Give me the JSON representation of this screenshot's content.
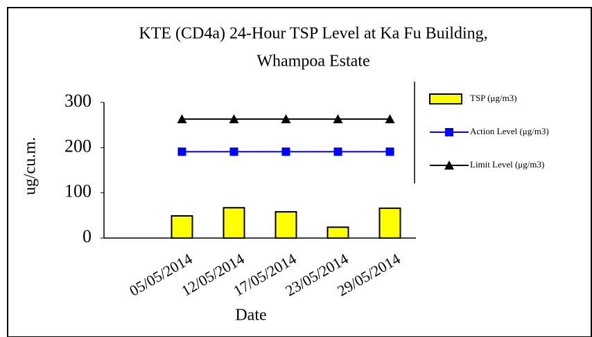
{
  "chart_data": {
    "type": "bar",
    "title": [
      "KTE  (CD4a) 24-Hour TSP Level at Ka Fu Building,",
      "Whampoa Estate"
    ],
    "x_label": "Date",
    "y_label": "ug/cu.m.",
    "categories": [
      null,
      "05/05/2014",
      "12/05/2014",
      "17/05/2014",
      "23/05/2014",
      "29/05/2014"
    ],
    "series": [
      {
        "name": "TSP (μg/m3)",
        "type": "bar",
        "color": "#ffff00",
        "values": [
          null,
          49,
          67,
          58,
          24,
          66
        ]
      },
      {
        "name": "Action Level (μg/m3)",
        "type": "line",
        "marker": "square",
        "color": "#0000ff",
        "values": [
          null,
          191,
          191,
          191,
          191,
          191
        ]
      },
      {
        "name": "Limit Level (μg/m3)",
        "type": "line",
        "marker": "triangle",
        "color": "#000000",
        "values": [
          null,
          263,
          263,
          263,
          263,
          263
        ]
      }
    ],
    "ylim": [
      0,
      300
    ],
    "yticks": [
      0,
      100,
      200,
      300
    ],
    "grid": false,
    "legend": "right"
  }
}
